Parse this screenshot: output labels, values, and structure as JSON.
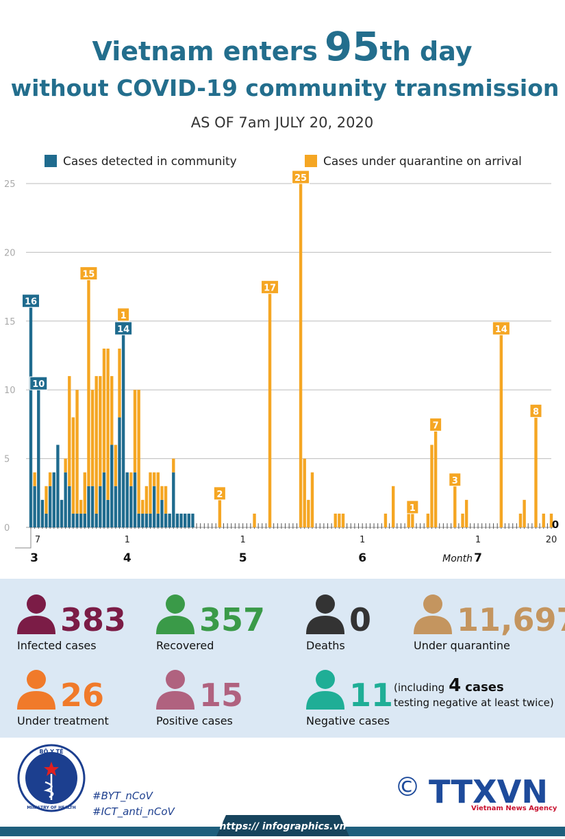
{
  "chart_data": {
    "type": "stacked-bar",
    "title_parts": [
      "Vietnam enters",
      "95",
      "th day"
    ],
    "title_line2": "without COVID-19 community transmission",
    "subtitle": "AS OF 7am JULY 20, 2020",
    "categories": [
      "7",
      null,
      null,
      null,
      null,
      null,
      null,
      null,
      null,
      null,
      null,
      null,
      null,
      null,
      null,
      null,
      null,
      null,
      null,
      null,
      null,
      null,
      null,
      null,
      null,
      "1",
      null,
      null,
      null,
      null,
      null,
      null,
      null,
      null,
      null,
      null,
      null,
      null,
      null,
      null,
      null,
      null,
      null,
      null,
      null,
      null,
      null,
      null,
      null,
      null,
      null,
      null,
      null,
      null,
      null,
      "1",
      null,
      null,
      null,
      null,
      null,
      null,
      null,
      null,
      null,
      null,
      null,
      null,
      null,
      null,
      null,
      null,
      null,
      null,
      null,
      null,
      null,
      null,
      null,
      null,
      null,
      null,
      null,
      null,
      null,
      null,
      "1",
      null,
      null,
      null,
      null,
      null,
      null,
      null,
      null,
      null,
      null,
      null,
      null,
      null,
      null,
      null,
      null,
      null,
      null,
      null,
      null,
      null,
      null,
      null,
      null,
      null,
      null,
      null,
      null,
      null,
      "1",
      null,
      null,
      null,
      null,
      null,
      null,
      null,
      null,
      null,
      null,
      null,
      null,
      null,
      null,
      null,
      null,
      null,
      null,
      "20"
    ],
    "month_labels": [
      "3",
      "4",
      "5",
      "6",
      "7"
    ],
    "month_title": "Month",
    "ylim": [
      0,
      25
    ],
    "yticks": [
      0,
      5,
      10,
      15,
      20,
      25
    ],
    "grid": true,
    "series": [
      {
        "name": "Cases detected in community",
        "color": "#1f6b8e",
        "values": [
          16,
          3,
          10,
          2,
          1,
          3,
          4,
          6,
          2,
          4,
          3,
          1,
          1,
          1,
          1,
          3,
          3,
          1,
          3,
          4,
          2,
          6,
          3,
          8,
          14,
          4,
          3,
          4,
          1,
          1,
          1,
          1,
          3,
          1,
          2,
          1,
          1,
          4,
          1,
          1,
          1,
          1,
          1,
          0,
          0,
          0,
          0,
          0,
          0,
          0,
          0,
          0,
          0,
          0,
          0,
          0,
          0,
          0,
          0,
          0,
          0,
          0,
          0,
          0,
          0,
          0,
          0,
          0,
          0,
          0,
          0,
          0,
          0,
          0,
          0,
          0,
          0,
          0,
          0,
          0,
          0,
          0,
          0,
          0,
          0,
          0,
          0,
          0,
          0,
          0,
          0,
          0,
          0,
          0,
          0,
          0,
          0,
          0,
          0,
          0,
          0,
          0,
          0,
          0,
          0,
          0,
          0,
          0,
          0,
          0,
          0,
          0,
          0,
          0,
          0,
          0,
          0,
          0,
          0,
          0,
          0,
          0,
          0,
          0,
          0,
          0,
          0,
          0,
          0,
          0,
          0,
          0,
          0,
          0,
          0,
          0
        ],
        "value_labels": [
          "16",
          null,
          "10",
          null,
          null,
          null,
          null,
          null,
          null,
          null,
          null,
          null,
          null,
          null,
          null,
          null,
          null,
          null,
          null,
          null,
          null,
          null,
          null,
          null,
          "14",
          null,
          null,
          null,
          null,
          null,
          null,
          null,
          null,
          null,
          null,
          null,
          null,
          null,
          null,
          null,
          null,
          null,
          null,
          null,
          null,
          null,
          null,
          null,
          null,
          null,
          null,
          null,
          null,
          null,
          null,
          null,
          null,
          null,
          null,
          null,
          null,
          null,
          null,
          null,
          null,
          null,
          null,
          null,
          null,
          null,
          null,
          null,
          null,
          null,
          null,
          null,
          null,
          null,
          null,
          null,
          null,
          null,
          null,
          null,
          null,
          null,
          null,
          null,
          null,
          null,
          null,
          null,
          null,
          null,
          null,
          null,
          null,
          null,
          null,
          null,
          null,
          null,
          null,
          null,
          null,
          null,
          null,
          null,
          null,
          null,
          null,
          null,
          null,
          null,
          null,
          null,
          null,
          null,
          null,
          null,
          null,
          null,
          null,
          null,
          null,
          null,
          null,
          null,
          null,
          null,
          null,
          null,
          null,
          null,
          null,
          "0"
        ]
      },
      {
        "name": "Cases under quarantine on arrival",
        "color": "#f5a623",
        "values": [
          0,
          1,
          0,
          0,
          2,
          1,
          0,
          0,
          0,
          1,
          8,
          7,
          9,
          1,
          3,
          15,
          7,
          10,
          8,
          9,
          11,
          5,
          3,
          5,
          1,
          0,
          1,
          6,
          9,
          1,
          2,
          3,
          1,
          3,
          1,
          2,
          0,
          1,
          0,
          0,
          0,
          0,
          0,
          0,
          0,
          0,
          0,
          0,
          0,
          2,
          0,
          0,
          0,
          0,
          0,
          0,
          0,
          0,
          1,
          0,
          0,
          0,
          17,
          0,
          0,
          0,
          0,
          0,
          0,
          0,
          25,
          5,
          2,
          4,
          0,
          0,
          0,
          0,
          0,
          1,
          1,
          1,
          0,
          0,
          0,
          0,
          0,
          0,
          0,
          0,
          0,
          0,
          1,
          0,
          3,
          0,
          0,
          0,
          1,
          1,
          0,
          0,
          0,
          1,
          6,
          7,
          0,
          0,
          0,
          0,
          3,
          0,
          1,
          2,
          0,
          0,
          0,
          0,
          0,
          0,
          0,
          0,
          14,
          0,
          0,
          0,
          0,
          1,
          2,
          0,
          0,
          8,
          0,
          1,
          0,
          1
        ],
        "value_labels": [
          null,
          null,
          null,
          null,
          null,
          null,
          null,
          null,
          null,
          null,
          null,
          null,
          null,
          null,
          null,
          "15",
          null,
          null,
          null,
          null,
          null,
          null,
          null,
          null,
          "1",
          null,
          null,
          null,
          null,
          null,
          null,
          null,
          null,
          null,
          null,
          null,
          null,
          null,
          null,
          null,
          null,
          null,
          null,
          null,
          null,
          null,
          null,
          null,
          null,
          "2",
          null,
          null,
          null,
          null,
          null,
          null,
          null,
          null,
          null,
          null,
          null,
          null,
          "17",
          null,
          null,
          null,
          null,
          null,
          null,
          null,
          "25",
          null,
          null,
          null,
          null,
          null,
          null,
          null,
          null,
          null,
          null,
          null,
          null,
          null,
          null,
          null,
          null,
          null,
          null,
          null,
          null,
          null,
          null,
          null,
          null,
          null,
          null,
          null,
          null,
          "1",
          null,
          null,
          null,
          null,
          null,
          "7",
          null,
          null,
          null,
          null,
          "3",
          null,
          null,
          null,
          null,
          null,
          null,
          null,
          null,
          null,
          null,
          null,
          "14",
          null,
          null,
          null,
          null,
          null,
          null,
          null,
          null,
          "8",
          null,
          null,
          null,
          null
        ]
      }
    ]
  },
  "stats": {
    "items": [
      {
        "value": "383",
        "label": "Infected cases",
        "color": "#7b1c46"
      },
      {
        "value": "357",
        "label": "Recovered",
        "color": "#3a9a48"
      },
      {
        "value": "0",
        "label": "Deaths",
        "color": "#333333"
      },
      {
        "value": "11,697",
        "label": "Under quarantine",
        "color": "#c4955f"
      },
      {
        "value": "26",
        "label": "Under treatment",
        "color": "#f07a2a"
      },
      {
        "value": "15",
        "label": "Positive cases",
        "color": "#b0627f"
      },
      {
        "value": "11",
        "label": "Negative cases",
        "color": "#1fae96"
      }
    ],
    "note": {
      "prefix": "(including",
      "number": "4",
      "suffix": "cases",
      "line2": "testing negative at least twice)"
    }
  },
  "footer": {
    "logo_top": "BỘ Y TẾ",
    "logo_bottom": "MINISTRY OF HEALTH",
    "hashtags": [
      "#BYT_nCoV",
      "#ICT_anti_nCoV"
    ],
    "copyright": "©",
    "agency": "TTXVN",
    "agency_name": "Vietnam News Agency",
    "url": "https:// infographics.vn"
  }
}
